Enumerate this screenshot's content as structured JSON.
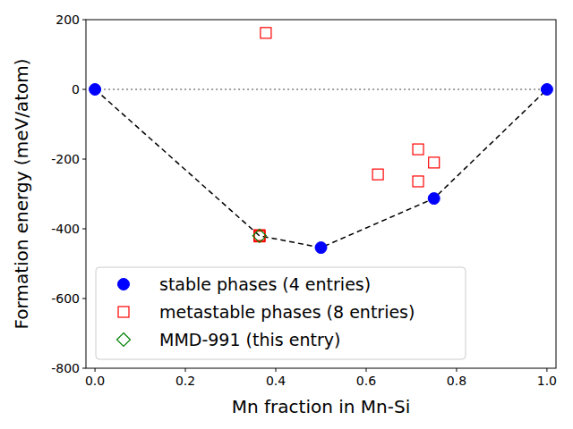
{
  "chart_data": {
    "type": "scatter",
    "x_label": "Mn fraction in Mn-Si",
    "y_label": "Formation energy (meV/atom)",
    "xlim": [
      -0.02,
      1.02
    ],
    "ylim": [
      -800,
      200
    ],
    "xticks": [
      {
        "value": 0,
        "label": "0.0"
      },
      0.2,
      0.4,
      0.6,
      0.8,
      {
        "value": 1,
        "label": "1.0"
      }
    ],
    "yticks": [
      -800,
      -600,
      -400,
      -200,
      0,
      200
    ],
    "legend": "lower left",
    "grid": false,
    "series": [
      {
        "type": "line",
        "color": "#808080",
        "line_style": "dotted",
        "x": [
          0,
          1
        ],
        "values": [
          0,
          0
        ]
      },
      {
        "type": "line",
        "color": "#000000",
        "line_style": "dashed",
        "x": [
          0,
          0.364,
          0.5,
          0.75,
          1
        ],
        "values": [
          0,
          -420,
          -454,
          -313,
          0
        ]
      },
      {
        "type": "scatter",
        "name": "stable phases (4 entries)",
        "color": "#0000ff",
        "marker": "circle",
        "x": [
          0,
          0.5,
          0.75,
          1
        ],
        "values": [
          0,
          -454,
          -313,
          0
        ]
      },
      {
        "type": "scatter",
        "name": "metastable phases (8 entries)",
        "color": "#ff0000",
        "marker": "square",
        "x": [
          0.364,
          0.364,
          0.364,
          0.378,
          0.626,
          0.715,
          0.715,
          0.75
        ],
        "values": [
          -418,
          -420,
          -422,
          162,
          -244,
          -172,
          -264,
          -210
        ]
      },
      {
        "type": "scatter",
        "name": "MMD-991 (this entry)",
        "color": "#008000",
        "marker": "diamond",
        "x": [
          0.364
        ],
        "values": [
          -420
        ]
      }
    ]
  }
}
